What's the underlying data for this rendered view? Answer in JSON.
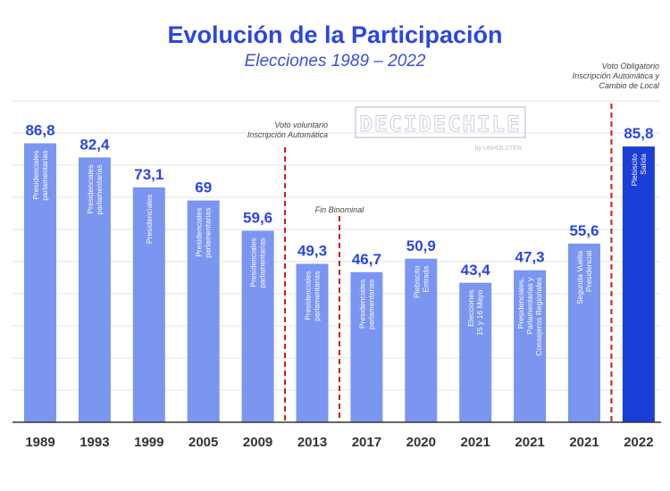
{
  "chart_data": {
    "type": "bar",
    "title": "Evolución de la Participación",
    "subtitle": "Elecciones 1989 – 2022",
    "xlabel": "",
    "ylabel": "",
    "ylim": [
      0,
      100
    ],
    "grid": true,
    "categories": [
      "1989",
      "1993",
      "1999",
      "2005",
      "2009",
      "2013",
      "2017",
      "2020",
      "2021",
      "2021",
      "2021",
      "2022"
    ],
    "values": [
      86.8,
      82.4,
      73.1,
      69,
      59.6,
      49.3,
      46.7,
      50.9,
      43.4,
      47.3,
      55.6,
      85.8
    ],
    "value_labels": [
      "86,8",
      "82,4",
      "73,1",
      "69",
      "59,6",
      "49,3",
      "46,7",
      "50,9",
      "43,4",
      "47,3",
      "55,6",
      "85,8"
    ],
    "bar_labels": [
      [
        "Presidenciales",
        "parlamentarias"
      ],
      [
        "Presidenciales",
        "parlamentarias"
      ],
      [
        "Presidenciales"
      ],
      [
        "Presidenciales",
        "parlamentarias"
      ],
      [
        "Presidenciales",
        "parlamentarias"
      ],
      [
        "Presidenciales",
        "parlamentarias"
      ],
      [
        "Presidenciales",
        "parlamentarias"
      ],
      [
        "Plebiscito",
        "Entrada"
      ],
      [
        "Elecciones",
        "15 y 16 Mayo"
      ],
      [
        "Presidenciales,",
        "Parlamentarias y",
        "Consejeros Regionales"
      ],
      [
        "Segunda Vuelta",
        "Presidencial"
      ],
      [
        "Plebiscito",
        "Salida"
      ]
    ],
    "annotations": [
      {
        "after_index": 4,
        "lines": [
          "Voto voluntario",
          "Inscripción Automática"
        ]
      },
      {
        "after_index": 5,
        "lines": [
          "Fin Binominal"
        ]
      },
      {
        "after_index": 10,
        "lines": [
          "Voto Obligatorio",
          "Inscripción Automática y",
          "Cambio de Local"
        ]
      }
    ],
    "watermark": "DECIDECHILE",
    "watermark_sub": "by UNHOLSTER",
    "colors": {
      "bar": "#7b96f0",
      "highlight": "#1a3fd6",
      "label": "#2b47e0",
      "divider": "#cc1a1a"
    },
    "highlight_index": 11
  }
}
